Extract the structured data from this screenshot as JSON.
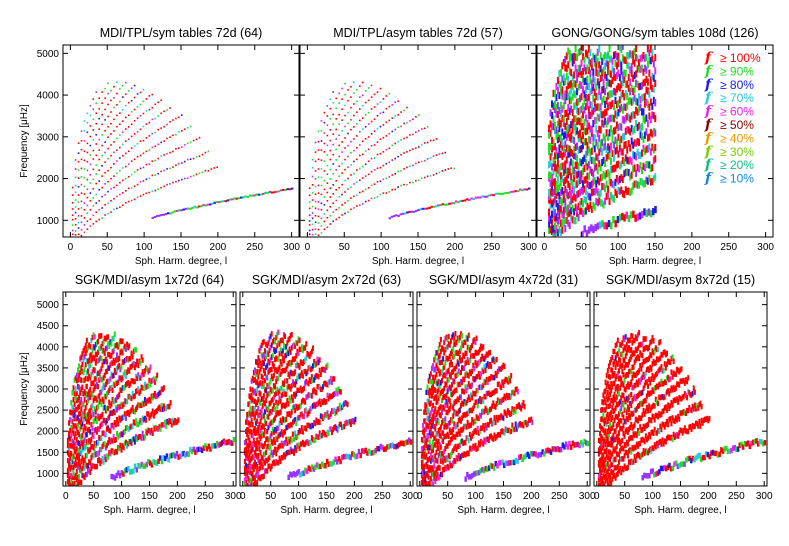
{
  "figure": {
    "legend": [
      {
        "label": "≥ 100%",
        "color": "#ff0000"
      },
      {
        "label": "≥ 90%",
        "color": "#22dd22"
      },
      {
        "label": "≥ 80%",
        "color": "#1a1aee"
      },
      {
        "label": "≥ 70%",
        "color": "#22ccdd"
      },
      {
        "label": "≥ 60%",
        "color": "#ee22ee"
      },
      {
        "label": "≥ 50%",
        "color": "#8b0000"
      },
      {
        "label": "≥ 40%",
        "color": "#ee9900"
      },
      {
        "label": "≥ 30%",
        "color": "#77cc00"
      },
      {
        "label": "≥ 20%",
        "color": "#11bb88"
      },
      {
        "label": "≥ 10%",
        "color": "#1188dd"
      }
    ],
    "legend_glyph": "f",
    "fallback_color": "#9933ff"
  },
  "chart_data": [
    {
      "type": "scatter",
      "title": "MDI/TPL/sym tables 72d (64)",
      "xlabel": "Sph. Harm. degree, l",
      "ylabel": "Frequency [μHz]",
      "xlim": [
        -10,
        310
      ],
      "ylim": [
        600,
        5200
      ],
      "xticks": [
        0,
        50,
        100,
        150,
        200,
        250,
        300
      ],
      "yticks": [
        1000,
        2000,
        3000,
        4000,
        5000
      ],
      "show_xlabel": true,
      "show_ylabel": true,
      "show_yticklabels": true,
      "variant": "mdi",
      "lmax": 200,
      "dense": false,
      "thick": 1.6,
      "redfrac": 0.55
    },
    {
      "type": "scatter",
      "title": "MDI/TPL/asym tables 72d (57)",
      "xlabel": "Sph. Harm. degree, l",
      "ylabel": "",
      "xlim": [
        -10,
        310
      ],
      "ylim": [
        600,
        5200
      ],
      "xticks": [
        0,
        50,
        100,
        150,
        200,
        250,
        300
      ],
      "yticks": [
        1000,
        2000,
        3000,
        4000,
        5000
      ],
      "show_xlabel": true,
      "show_ylabel": false,
      "show_yticklabels": false,
      "variant": "mdi",
      "lmax": 200,
      "dense": false,
      "thick": 1.6,
      "redfrac": 0.45
    },
    {
      "type": "scatter",
      "title": "GONG/GONG/sym tables 108d (126)",
      "xlabel": "Sph. Harm. degree, l",
      "ylabel": "",
      "xlim": [
        -10,
        310
      ],
      "ylim": [
        600,
        5200
      ],
      "xticks": [
        0,
        50,
        100,
        150,
        200,
        250,
        300
      ],
      "yticks": [
        1000,
        2000,
        3000,
        4000,
        5000
      ],
      "show_xlabel": true,
      "show_ylabel": false,
      "show_yticklabels": false,
      "variant": "gong",
      "lmax": 150,
      "dense": true,
      "thick": 8,
      "redfrac": 0.35
    },
    {
      "type": "scatter",
      "title": "SGK/MDI/asym 1x72d (64)",
      "xlabel": "Sph. Harm. degree, l",
      "ylabel": "Frequency [μHz]",
      "xlim": [
        -5,
        305
      ],
      "ylim": [
        700,
        5300
      ],
      "xticks": [
        0,
        50,
        100,
        150,
        200,
        250,
        300
      ],
      "yticks": [
        1000,
        1500,
        2000,
        2500,
        3000,
        3500,
        4000,
        4500,
        5000
      ],
      "show_xlabel": true,
      "show_ylabel": true,
      "show_yticklabels": true,
      "variant": "sgk",
      "lmax": 200,
      "dense": true,
      "thick": 6,
      "redfrac": 0.6
    },
    {
      "type": "scatter",
      "title": "SGK/MDI/asym 2x72d (63)",
      "xlabel": "Sph. Harm. degree, l",
      "ylabel": "",
      "xlim": [
        -5,
        305
      ],
      "ylim": [
        700,
        5300
      ],
      "xticks": [
        0,
        50,
        100,
        150,
        200,
        250,
        300
      ],
      "yticks": [
        1000,
        1500,
        2000,
        2500,
        3000,
        3500,
        4000,
        4500,
        5000
      ],
      "show_xlabel": true,
      "show_ylabel": false,
      "show_yticklabels": false,
      "variant": "sgk",
      "lmax": 200,
      "dense": true,
      "thick": 6,
      "redfrac": 0.7
    },
    {
      "type": "scatter",
      "title": "SGK/MDI/asym 4x72d (31)",
      "xlabel": "Sph. Harm. degree, l",
      "ylabel": "",
      "xlim": [
        -5,
        305
      ],
      "ylim": [
        700,
        5300
      ],
      "xticks": [
        0,
        50,
        100,
        150,
        200,
        250,
        300
      ],
      "yticks": [
        1000,
        1500,
        2000,
        2500,
        3000,
        3500,
        4000,
        4500,
        5000
      ],
      "show_xlabel": true,
      "show_ylabel": false,
      "show_yticklabels": false,
      "variant": "sgk",
      "lmax": 200,
      "dense": true,
      "thick": 6,
      "redfrac": 0.75
    },
    {
      "type": "scatter",
      "title": "SGK/MDI/asym 8x72d (15)",
      "xlabel": "Sph. Harm. degree, l",
      "ylabel": "",
      "xlim": [
        -5,
        305
      ],
      "ylim": [
        700,
        5300
      ],
      "xticks": [
        0,
        50,
        100,
        150,
        200,
        250,
        300
      ],
      "yticks": [
        1000,
        1500,
        2000,
        2500,
        3000,
        3500,
        4000,
        4500,
        5000
      ],
      "show_xlabel": true,
      "show_ylabel": false,
      "show_yticklabels": false,
      "variant": "sgk8",
      "lmax": 200,
      "dense": true,
      "thick": 6,
      "redfrac": 0.92
    }
  ]
}
